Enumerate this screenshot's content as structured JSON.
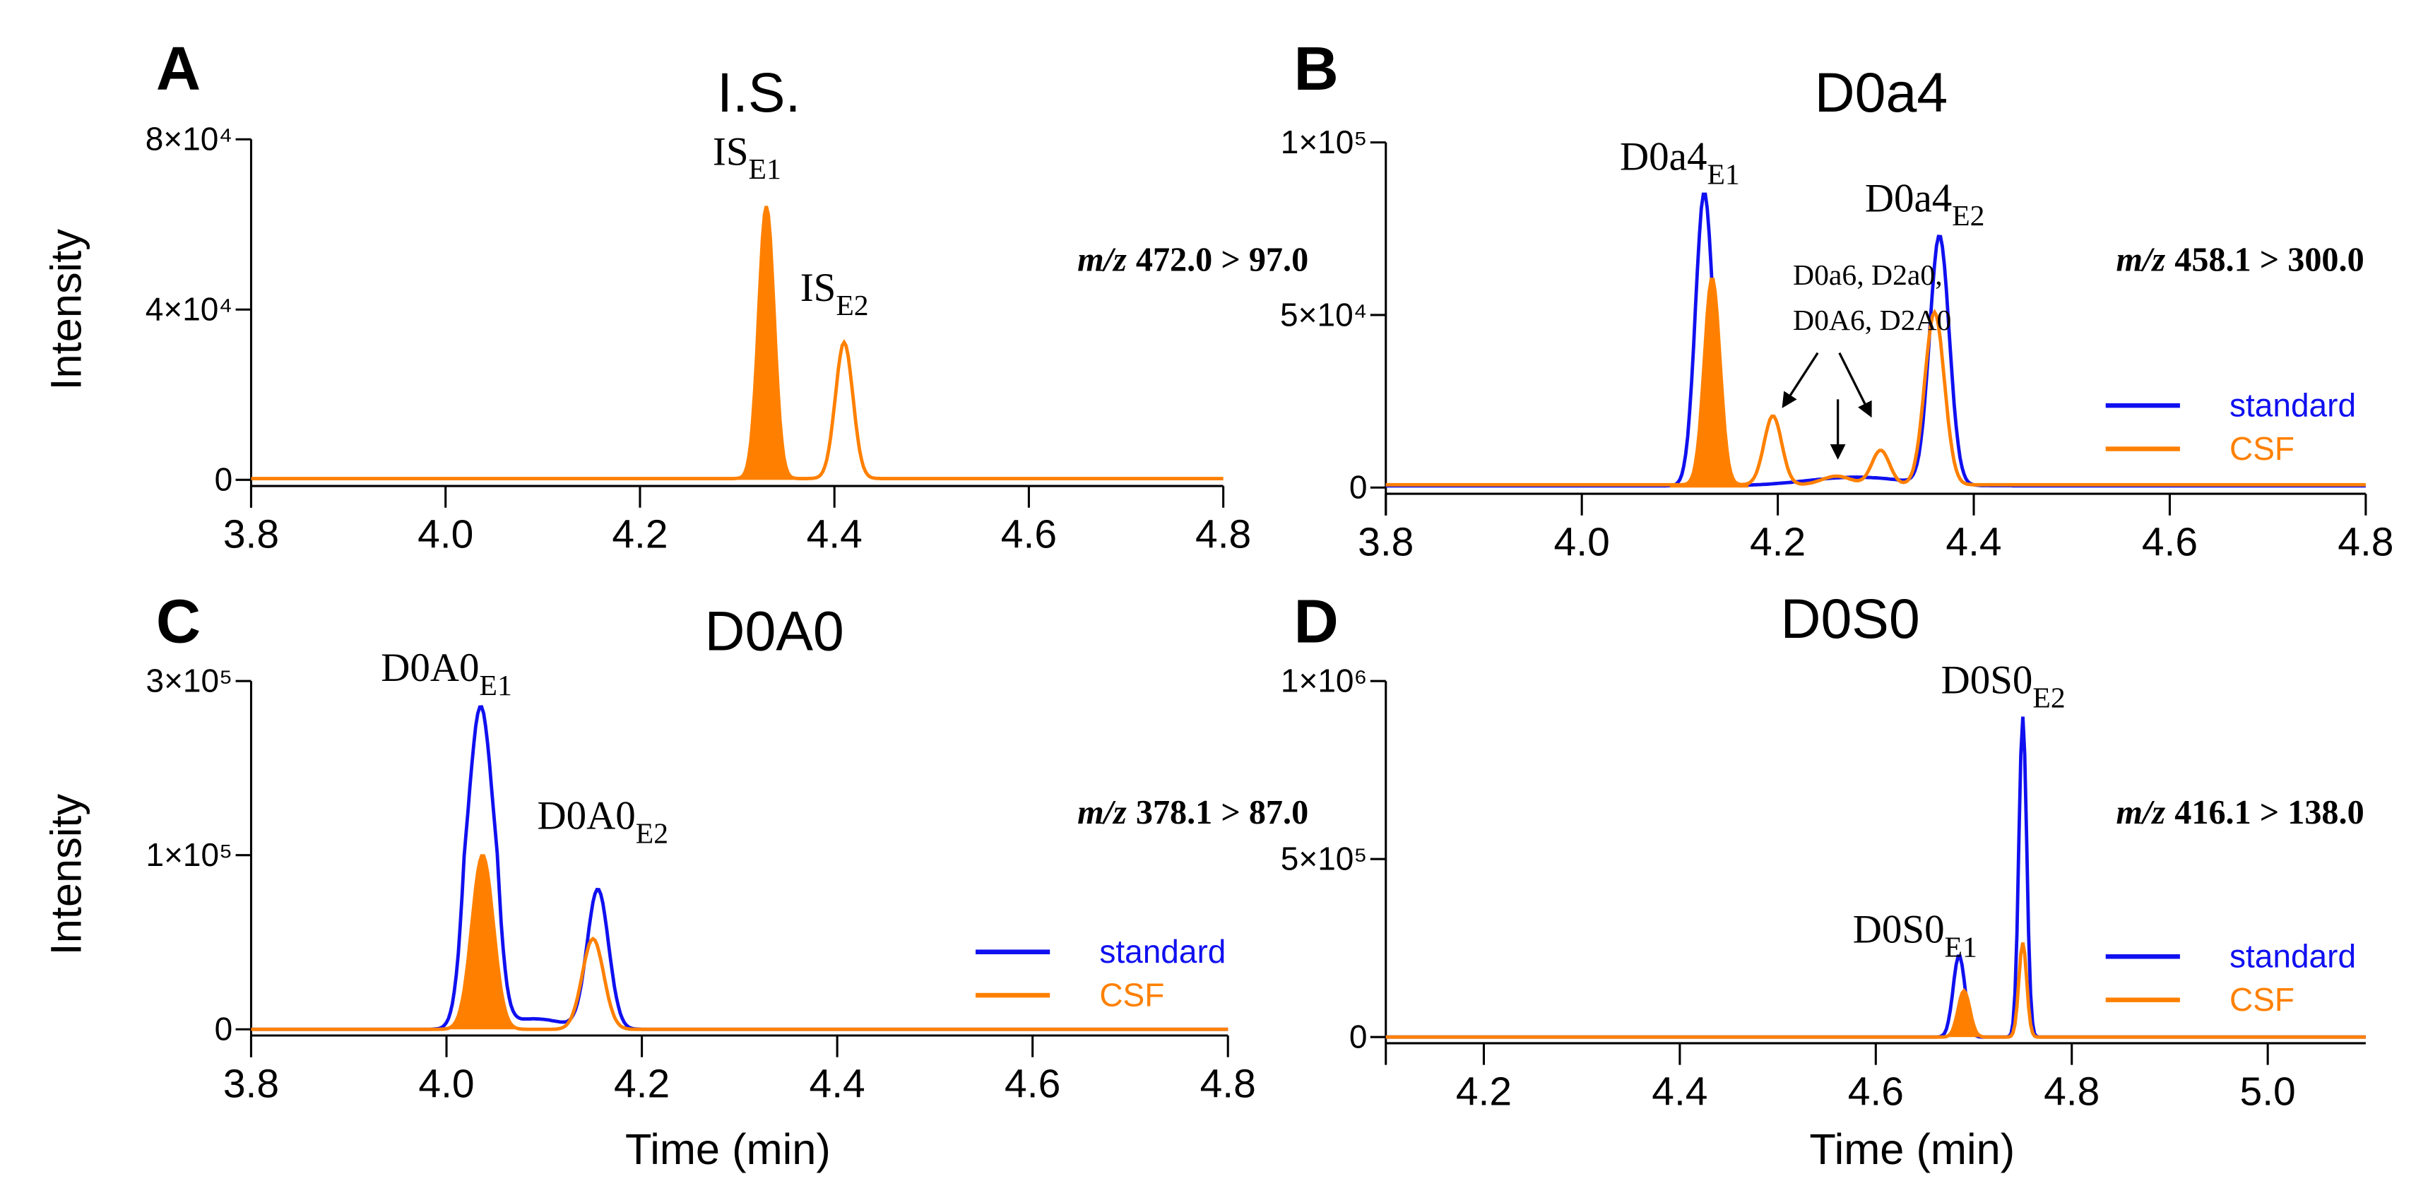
{
  "colors": {
    "standard": "#1010f0",
    "CSF": "#ff8000",
    "axis": "#000000"
  },
  "chart_data": [
    {
      "type": "line",
      "panel": "A",
      "title": "I.S.",
      "xlabel": "",
      "ylabel": "Intensity",
      "xlim": [
        3.8,
        4.8
      ],
      "xticks": [
        "3.8",
        "4.0",
        "4.2",
        "4.4",
        "4.6",
        "4.8"
      ],
      "yticks": [
        0,
        40000,
        80000
      ],
      "ytick_labels": [
        "0",
        "4×10⁴",
        "8×10⁴"
      ],
      "transition": {
        "prefix": "m/z",
        "value": "472.0 > 97.0"
      },
      "legend": [],
      "series": [
        {
          "name": "CSF",
          "baseline": 300,
          "fill_range": [
            4.28,
            4.375
          ],
          "peaks": [
            {
              "rt": 4.33,
              "intensity": 64000,
              "sigma": 0.008
            },
            {
              "rt": 4.41,
              "intensity": 32000,
              "sigma": 0.009
            }
          ]
        }
      ],
      "peak_labels": [
        {
          "base": "IS",
          "sub": "E1",
          "rt": 4.31,
          "intensity": 74000
        },
        {
          "base": "IS",
          "sub": "E2",
          "rt": 4.4,
          "intensity": 42000
        }
      ]
    },
    {
      "type": "line",
      "panel": "B",
      "title": "D0a4",
      "xlabel": "",
      "ylabel": "",
      "xlim": [
        3.8,
        4.8
      ],
      "xticks": [
        "3.8",
        "4.0",
        "4.2",
        "4.4",
        "4.6",
        "4.8"
      ],
      "yticks": [
        0,
        50000,
        100000
      ],
      "ytick_labels": [
        "0",
        "5×10⁴",
        "1×10⁵"
      ],
      "transition": {
        "prefix": "m/z",
        "value": "458.1 > 300.0"
      },
      "legend": [
        "standard",
        "CSF"
      ],
      "series": [
        {
          "name": "standard",
          "baseline": 500,
          "fill_range": null,
          "peaks": [
            {
              "rt": 4.125,
              "intensity": 85000,
              "sigma": 0.009
            },
            {
              "rt": 4.365,
              "intensity": 72000,
              "sigma": 0.01
            },
            {
              "rt": 4.28,
              "intensity": 2500,
              "sigma": 0.05
            }
          ]
        },
        {
          "name": "CSF",
          "baseline": 800,
          "fill_range": [
            4.09,
            4.17
          ],
          "peaks": [
            {
              "rt": 4.133,
              "intensity": 60000,
              "sigma": 0.008
            },
            {
              "rt": 4.195,
              "intensity": 20000,
              "sigma": 0.009
            },
            {
              "rt": 4.26,
              "intensity": 2500,
              "sigma": 0.015
            },
            {
              "rt": 4.305,
              "intensity": 10000,
              "sigma": 0.009
            },
            {
              "rt": 4.36,
              "intensity": 50000,
              "sigma": 0.01
            }
          ]
        }
      ],
      "peak_labels": [
        {
          "base": "D0a4",
          "sub": "E1",
          "rt": 4.1,
          "intensity": 92000
        },
        {
          "base": "D0a4",
          "sub": "E2",
          "rt": 4.35,
          "intensity": 80000
        }
      ],
      "annotation": {
        "lines": [
          "D0a6, D2a0,",
          "D0A6, D2A0"
        ],
        "arrow_targets_rt": [
          4.195,
          4.26,
          4.305
        ]
      }
    },
    {
      "type": "line",
      "panel": "C",
      "title": "D0A0",
      "xlabel": "Time (min)",
      "ylabel": "Intensity",
      "xlim": [
        3.8,
        4.8
      ],
      "xticks": [
        "3.8",
        "4.0",
        "4.2",
        "4.4",
        "4.6",
        "4.8"
      ],
      "yticks": [
        0,
        100000,
        300000
      ],
      "ytick_labels": [
        "0",
        "1×10⁵",
        "3×10⁵"
      ],
      "transition": {
        "prefix": "m/z",
        "value": "378.1 > 87.0"
      },
      "legend": [
        "standard",
        "CSF"
      ],
      "series": [
        {
          "name": "standard",
          "baseline": 0,
          "fill_range": null,
          "peaks": [
            {
              "rt": 4.035,
              "intensity": 270000,
              "sigma": 0.012
            },
            {
              "rt": 4.155,
              "intensity": 80000,
              "sigma": 0.011
            },
            {
              "rt": 4.09,
              "intensity": 6000,
              "sigma": 0.03
            }
          ]
        },
        {
          "name": "CSF",
          "baseline": 0,
          "fill_range": [
            4.0,
            4.075
          ],
          "peaks": [
            {
              "rt": 4.037,
              "intensity": 100000,
              "sigma": 0.011
            },
            {
              "rt": 4.15,
              "intensity": 52000,
              "sigma": 0.011
            }
          ]
        }
      ],
      "peak_labels": [
        {
          "base": "D0A0",
          "sub": "E1",
          "rt": 4.0,
          "intensity": 300000
        },
        {
          "base": "D0A0",
          "sub": "E2",
          "rt": 4.16,
          "intensity": 130000
        }
      ]
    },
    {
      "type": "line",
      "panel": "D",
      "title": "D0S0",
      "xlabel": "Time (min)",
      "ylabel": "",
      "xlim": [
        4.1,
        5.1
      ],
      "xticks": [
        "4.2",
        "4.4",
        "4.6",
        "4.8",
        "5.0"
      ],
      "xtick_values": [
        4.2,
        4.4,
        4.6,
        4.8,
        5.0
      ],
      "yticks": [
        0,
        500000,
        1000000
      ],
      "ytick_labels": [
        "0",
        "5×10⁵",
        "1×10⁶"
      ],
      "transition": {
        "prefix": "m/z",
        "value": "416.1 > 138.0"
      },
      "legend": [
        "standard",
        "CSF"
      ],
      "series": [
        {
          "name": "standard",
          "baseline": 0,
          "fill_range": null,
          "peaks": [
            {
              "rt": 4.685,
              "intensity": 230000,
              "sigma": 0.006
            },
            {
              "rt": 4.75,
              "intensity": 900000,
              "sigma": 0.004
            }
          ]
        },
        {
          "name": "CSF",
          "baseline": 0,
          "fill_range": [
            4.67,
            4.71
          ],
          "peaks": [
            {
              "rt": 4.69,
              "intensity": 130000,
              "sigma": 0.006
            },
            {
              "rt": 4.75,
              "intensity": 265000,
              "sigma": 0.004
            }
          ]
        }
      ],
      "peak_labels": [
        {
          "base": "D0S0",
          "sub": "E2",
          "rt": 4.73,
          "intensity": 1000000
        },
        {
          "base": "D0S0",
          "sub": "E1",
          "rt": 4.64,
          "intensity": 300000
        }
      ]
    }
  ]
}
